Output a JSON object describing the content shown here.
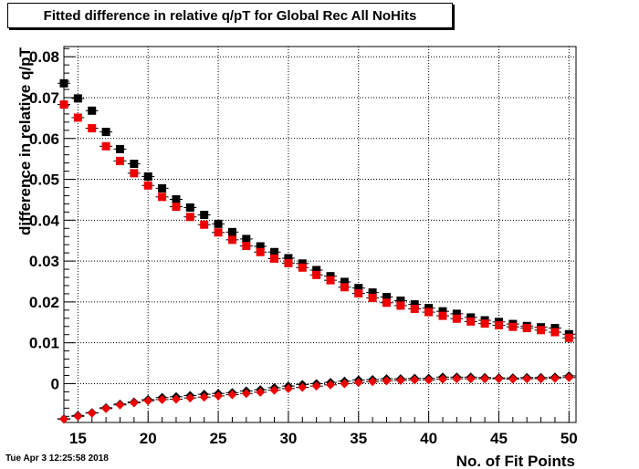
{
  "title": "Fitted difference in relative q/pT for Global Rec All NoHits",
  "timestamp": "Tue Apr  3 12:25:58 2018",
  "chart_data": {
    "type": "scatter",
    "title": "Fitted difference in relative q/pT for Global Rec All NoHits",
    "xlabel": "No. of Fit Points",
    "ylabel": "difference in relative q/pT",
    "xlim": [
      14,
      50.5
    ],
    "ylim": [
      -0.0095,
      0.0825
    ],
    "grid": true,
    "x_ticks": [
      "15",
      "20",
      "25",
      "30",
      "35",
      "40",
      "45",
      "50"
    ],
    "y_ticks": [
      "0",
      "0.01",
      "0.02",
      "0.03",
      "0.04",
      "0.05",
      "0.06",
      "0.07",
      "0.08"
    ],
    "x": [
      14,
      15,
      16,
      17,
      18,
      19,
      20,
      21,
      22,
      23,
      24,
      25,
      26,
      27,
      28,
      29,
      30,
      31,
      32,
      33,
      34,
      35,
      36,
      37,
      38,
      39,
      40,
      41,
      42,
      43,
      44,
      45,
      46,
      47,
      48,
      49,
      50
    ],
    "series": [
      {
        "marker": "square",
        "color": "#000000",
        "values": [
          0.0735,
          0.0698,
          0.0668,
          0.0616,
          0.0574,
          0.0538,
          0.0507,
          0.0478,
          0.0451,
          0.0431,
          0.0413,
          0.0391,
          0.0371,
          0.0354,
          0.0336,
          0.0322,
          0.0307,
          0.0294,
          0.0278,
          0.0263,
          0.0249,
          0.0234,
          0.0223,
          0.0212,
          0.0203,
          0.0194,
          0.0185,
          0.0177,
          0.0171,
          0.0162,
          0.0155,
          0.0151,
          0.0146,
          0.0141,
          0.0138,
          0.0136,
          0.0121
        ]
      },
      {
        "marker": "square",
        "color": "#ee0000",
        "values": [
          0.0683,
          0.0651,
          0.0625,
          0.0581,
          0.0545,
          0.0515,
          0.0485,
          0.0457,
          0.0433,
          0.0408,
          0.0389,
          0.037,
          0.0352,
          0.0337,
          0.0322,
          0.0306,
          0.0295,
          0.0284,
          0.0266,
          0.0253,
          0.0236,
          0.0221,
          0.021,
          0.0198,
          0.0191,
          0.0183,
          0.0175,
          0.0166,
          0.0159,
          0.0152,
          0.0147,
          0.0143,
          0.0139,
          0.0136,
          0.0131,
          0.0126,
          0.0112
        ]
      },
      {
        "marker": "diamond",
        "color": "#000000",
        "values": [
          -0.0086,
          -0.0078,
          -0.0071,
          -0.0059,
          -0.005,
          -0.0045,
          -0.0039,
          -0.0034,
          -0.0032,
          -0.0029,
          -0.0026,
          -0.0024,
          -0.0022,
          -0.0018,
          -0.0015,
          -0.001,
          -0.0006,
          -0.0002,
          0.0,
          0.0003,
          0.0006,
          0.0009,
          0.001,
          0.0012,
          0.0012,
          0.0013,
          0.0013,
          0.0016,
          0.0016,
          0.0016,
          0.0015,
          0.0014,
          0.0014,
          0.0015,
          0.0015,
          0.0016,
          0.0019
        ]
      },
      {
        "marker": "diamond",
        "color": "#ee0000",
        "values": [
          -0.0087,
          -0.008,
          -0.0072,
          -0.0061,
          -0.0052,
          -0.0047,
          -0.0042,
          -0.0039,
          -0.0038,
          -0.0035,
          -0.0033,
          -0.003,
          -0.0027,
          -0.0024,
          -0.0021,
          -0.0016,
          -0.0012,
          -0.0009,
          -0.0006,
          -0.0003,
          0.0,
          0.0003,
          0.0005,
          0.0007,
          0.0008,
          0.0009,
          0.0009,
          0.0011,
          0.0012,
          0.0012,
          0.0012,
          0.0012,
          0.0011,
          0.0012,
          0.0012,
          0.0013,
          0.0015
        ]
      }
    ]
  }
}
